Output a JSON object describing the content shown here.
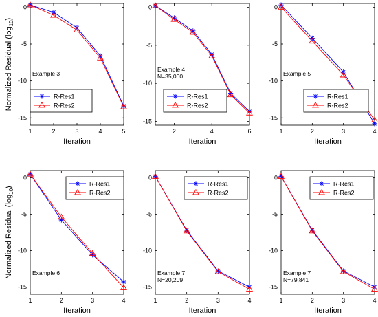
{
  "chart_data": [
    {
      "type": "line",
      "xlabel": "Iteration",
      "ylabel": "Normalized Residual (log",
      "ylabel_sub": "10",
      "ylabel_close": ")",
      "xlim": [
        1,
        5
      ],
      "ylim": [
        -15,
        0
      ],
      "xticks": [
        "1",
        "2",
        "3",
        "4",
        "5"
      ],
      "yticks": [
        "0",
        "-5",
        "-10",
        "-15"
      ],
      "annotation": [
        "Example 3"
      ],
      "x": [
        1,
        2,
        3,
        4,
        5
      ],
      "series": [
        {
          "name": "R-Res1",
          "values": [
            0.3,
            -0.7,
            -2.8,
            -6.6,
            -13.4
          ]
        },
        {
          "name": "R-Res2",
          "values": [
            0.3,
            -1.1,
            -3.1,
            -6.9,
            -13.5
          ]
        }
      ]
    },
    {
      "type": "line",
      "xlabel": "Iteration",
      "ylabel": "",
      "xlim": [
        1,
        6
      ],
      "ylim": [
        -15,
        0
      ],
      "xticks": [
        "2",
        "4",
        "6"
      ],
      "yticks": [
        "0",
        "-5",
        "-10",
        "-15"
      ],
      "annotation": [
        "Example 4",
        "N=35,000"
      ],
      "x": [
        1,
        2,
        3,
        4,
        5,
        6
      ],
      "series": [
        {
          "name": "R-Res1",
          "values": [
            0.2,
            -1.4,
            -3.1,
            -6.2,
            -11.3,
            -13.7
          ]
        },
        {
          "name": "R-Res2",
          "values": [
            0.2,
            -1.6,
            -3.3,
            -6.4,
            -11.5,
            -13.9
          ]
        }
      ]
    },
    {
      "type": "line",
      "xlabel": "Iteration",
      "ylabel": "",
      "xlim": [
        1,
        4
      ],
      "ylim": [
        -15,
        0
      ],
      "xticks": [
        "1",
        "2",
        "3",
        "4"
      ],
      "yticks": [
        "0",
        "-5",
        "-10",
        "-15"
      ],
      "annotation": [
        "Example 5"
      ],
      "x": [
        1,
        2,
        3,
        4
      ],
      "series": [
        {
          "name": "R-Res1",
          "values": [
            0.3,
            -4.2,
            -8.8,
            -15.8
          ]
        },
        {
          "name": "R-Res2",
          "values": [
            0.0,
            -4.6,
            -9.2,
            -15.3
          ]
        }
      ]
    },
    {
      "type": "line",
      "xlabel": "Iteration",
      "ylabel": "Normalized Residual (log",
      "ylabel_sub": "10",
      "ylabel_close": ")",
      "xlim": [
        1,
        4
      ],
      "ylim": [
        -15,
        0
      ],
      "xticks": [
        "1",
        "2",
        "3",
        "4"
      ],
      "yticks": [
        "0",
        "-5",
        "-10",
        "-15"
      ],
      "annotation": [
        "Example 6"
      ],
      "x": [
        1,
        2,
        3,
        4
      ],
      "series": [
        {
          "name": "R-Res1",
          "values": [
            0.5,
            -5.8,
            -10.6,
            -14.3
          ]
        },
        {
          "name": "R-Res2",
          "values": [
            0.5,
            -5.4,
            -10.4,
            -15.1
          ]
        }
      ]
    },
    {
      "type": "line",
      "xlabel": "Iteration",
      "ylabel": "",
      "xlim": [
        1,
        4
      ],
      "ylim": [
        -15,
        0
      ],
      "xticks": [
        "1",
        "2",
        "3",
        "4"
      ],
      "yticks": [
        "0",
        "-5",
        "-10",
        "-15"
      ],
      "annotation": [
        "Example 7",
        "N=20,209"
      ],
      "x": [
        1,
        2,
        3,
        4
      ],
      "series": [
        {
          "name": "R-Res1",
          "values": [
            0.2,
            -7.2,
            -12.8,
            -15.0
          ]
        },
        {
          "name": "R-Res2",
          "values": [
            0.2,
            -7.3,
            -12.9,
            -15.3
          ]
        }
      ]
    },
    {
      "type": "line",
      "xlabel": "Iteration",
      "ylabel": "",
      "xlim": [
        1,
        4
      ],
      "ylim": [
        -15,
        0
      ],
      "xticks": [
        "1",
        "2",
        "3",
        "4"
      ],
      "yticks": [
        "0",
        "-5",
        "-10",
        "-15"
      ],
      "annotation": [
        "Example 7",
        "N=79,841"
      ],
      "x": [
        1,
        2,
        3,
        4
      ],
      "series": [
        {
          "name": "R-Res1",
          "values": [
            0.2,
            -7.2,
            -12.8,
            -15.0
          ]
        },
        {
          "name": "R-Res2",
          "values": [
            0.2,
            -7.3,
            -12.9,
            -15.3
          ]
        }
      ]
    }
  ],
  "colors": {
    "series1": "#0000ff",
    "series2": "#ff0000",
    "axis": "#000000"
  }
}
